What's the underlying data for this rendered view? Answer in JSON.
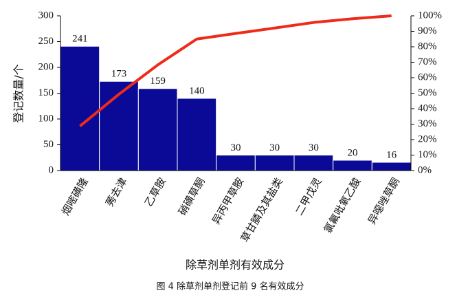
{
  "chart_data": {
    "type": "bar",
    "title": "图 4  除草剂单剂登记前 9 名有效成分",
    "xlabel": "除草剂单剂有效成分",
    "ylabel": "登记数量/个",
    "categories": [
      "烟嘧磺隆",
      "莠去津",
      "乙草胺",
      "硝磺草酮",
      "异丙甲草胺",
      "草甘膦及其盐类",
      "二甲戊灵",
      "氯氟吡氧乙酸",
      "异噁唑草酮"
    ],
    "series": [
      {
        "type": "bar",
        "color": "#0a0a96",
        "values": [
          241,
          173,
          159,
          140,
          30,
          30,
          30,
          20,
          16
        ]
      },
      {
        "type": "line",
        "axis": "y2",
        "color": "#ee2a1a",
        "values": [
          28.7,
          49.3,
          68.3,
          85.0,
          88.6,
          92.1,
          95.7,
          98.1,
          100
        ]
      }
    ],
    "ylim": [
      0,
      300
    ],
    "yticks": [
      0,
      50,
      100,
      150,
      200,
      250,
      300
    ],
    "y2lim": [
      0,
      100
    ],
    "y2ticks": [
      {
        "value": 0,
        "label": "0%"
      },
      {
        "value": 10,
        "label": "10%"
      },
      {
        "value": 20,
        "label": "20%"
      },
      {
        "value": 30,
        "label": "30%"
      },
      {
        "value": 40,
        "label": "40%"
      },
      {
        "value": 50,
        "label": "50%"
      },
      {
        "value": 60,
        "label": "60%"
      },
      {
        "value": 70,
        "label": "70%"
      },
      {
        "value": 80,
        "label": "80%"
      },
      {
        "value": 90,
        "label": "90%"
      },
      {
        "value": 100,
        "label": "100%"
      }
    ]
  }
}
